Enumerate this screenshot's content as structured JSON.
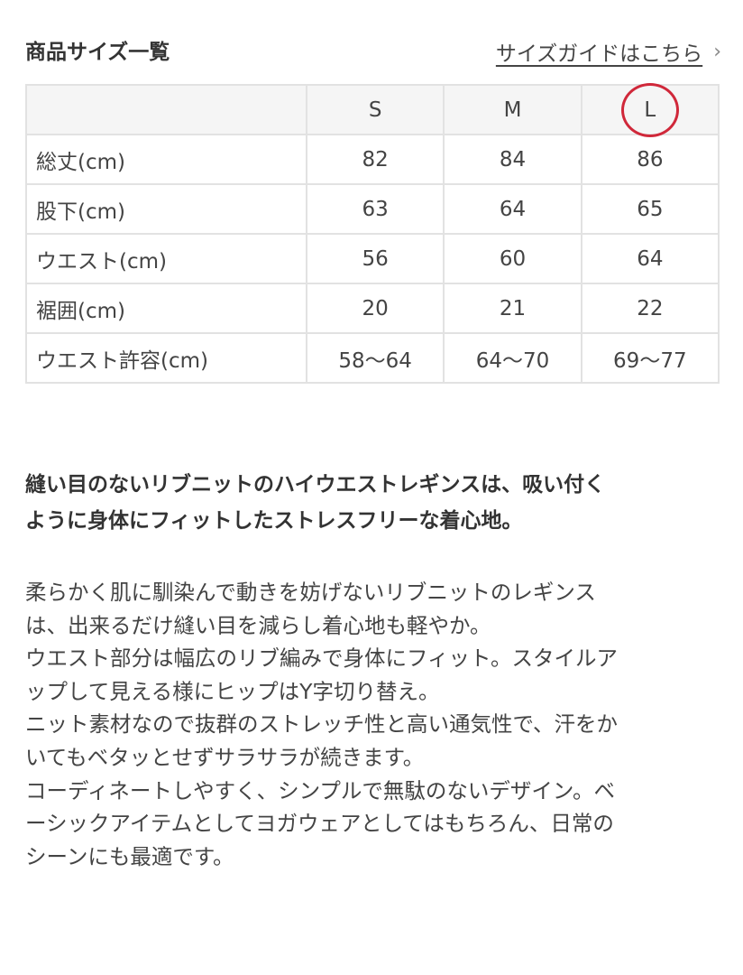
{
  "header": {
    "title": "商品サイズ一覧",
    "guide_link": "サイズガイドはこちら",
    "guide_icon": "chevron-right-icon"
  },
  "size_table": {
    "columns": [
      "",
      "S",
      "M",
      "L"
    ],
    "highlighted_column": "L",
    "highlight_color": "#d0283a",
    "rows": [
      {
        "label": "総丈(cm)",
        "values": [
          "82",
          "84",
          "86"
        ]
      },
      {
        "label": "股下(cm)",
        "values": [
          "63",
          "64",
          "65"
        ]
      },
      {
        "label": "ウエスト(cm)",
        "values": [
          "56",
          "60",
          "64"
        ]
      },
      {
        "label": "裾囲(cm)",
        "values": [
          "20",
          "21",
          "22"
        ]
      },
      {
        "label": "ウエスト許容(cm)",
        "values": [
          "58〜64",
          "64〜70",
          "69〜77"
        ]
      }
    ]
  },
  "description": {
    "lead": [
      "縫い目のないリブニットのハイウエストレギンスは、吸い付く",
      "ように身体にフィットしたストレスフリーな着心地。"
    ],
    "body": [
      "柔らかく肌に馴染んで動きを妨げないリブニットのレギンス",
      "は、出来るだけ縫い目を減らし着心地も軽やか。",
      "ウエスト部分は幅広のリブ編みで身体にフィット。スタイルア",
      "ップして見える様にヒップはY字切り替え。",
      "ニット素材なので抜群のストレッチ性と高い通気性で、汗をか",
      "いてもベタッとせずサラサラが続きます。",
      "コーディネートしやすく、シンプルで無駄のないデザイン。ベ",
      "ーシックアイテムとしてヨガウェアとしてはもちろん、日常の",
      "シーンにも最適です。"
    ]
  }
}
